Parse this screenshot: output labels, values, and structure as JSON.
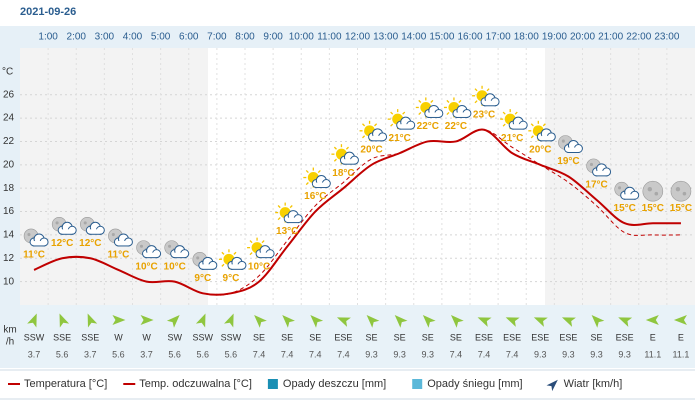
{
  "chart_data": {
    "type": "line",
    "date": "2021-09-26",
    "hour_labels": [
      "1:00",
      "2:00",
      "3:00",
      "4:00",
      "5:00",
      "6:00",
      "7:00",
      "8:00",
      "9:00",
      "10:00",
      "11:00",
      "12:00",
      "13:00",
      "14:00",
      "15:00",
      "16:00",
      "17:00",
      "18:00",
      "19:00",
      "20:00",
      "21:00",
      "22:00",
      "23:00"
    ],
    "y_unit": "°C",
    "ylim": [
      8,
      30
    ],
    "yticks": [
      10,
      12,
      14,
      16,
      18,
      20,
      22,
      24,
      26
    ],
    "grid": true,
    "series": [
      {
        "name": "Temperatura [°C]",
        "color": "#c00000",
        "dashed": false,
        "values": [
          11,
          12,
          12,
          11,
          10,
          10,
          9,
          9,
          10,
          13,
          16,
          18,
          20,
          21,
          22,
          22,
          23,
          21,
          20,
          19,
          17,
          15,
          15,
          15
        ],
        "value_labels": [
          "11°C",
          "12°C",
          "12°C",
          "11°C",
          "10°C",
          "10°C",
          "9°C",
          "9°C",
          "10°C",
          "13°C",
          "16°C",
          "18°C",
          "20°C",
          "21°C",
          "22°C",
          "22°C",
          "23°C",
          "21°C",
          "20°C",
          "19°C",
          "17°C",
          "15°C",
          "15°C",
          "15°C"
        ]
      },
      {
        "name": "Temp. odczuwalna [°C]",
        "color": "#c00000",
        "dashed": true,
        "values": [
          11,
          12,
          12,
          11,
          10,
          10,
          9,
          9,
          10.5,
          13.5,
          16.5,
          18.5,
          20.5,
          21,
          22,
          22,
          23,
          21.5,
          20,
          18.5,
          16.5,
          14.2,
          14,
          14
        ]
      }
    ],
    "legend_extra": [
      {
        "name": "Opady deszczu [mm]",
        "color": "#1a8fb4"
      },
      {
        "name": "Opady śniegu [mm]",
        "color": "#5bb8d9"
      },
      {
        "name": "Wiatr [km/h]",
        "color": "#2a4d7a"
      }
    ],
    "wind": {
      "unit": [
        "km",
        "/h"
      ],
      "color": "#8fc63f",
      "directions": [
        "SSW",
        "SSE",
        "SSE",
        "W",
        "W",
        "SW",
        "SSW",
        "SSW",
        "SE",
        "SE",
        "SE",
        "ESE",
        "SE",
        "SE",
        "SE",
        "SE",
        "ESE",
        "ESE",
        "ESE",
        "ESE",
        "SE",
        "ESE",
        "E",
        "E"
      ],
      "speeds": [
        3.7,
        5.6,
        3.7,
        5.6,
        3.7,
        5.6,
        5.6,
        5.6,
        7.4,
        7.4,
        7.4,
        7.4,
        9.3,
        9.3,
        9.3,
        7.4,
        7.4,
        7.4,
        9.3,
        9.3,
        9.3,
        9.3,
        11.1,
        11.1
      ]
    }
  }
}
